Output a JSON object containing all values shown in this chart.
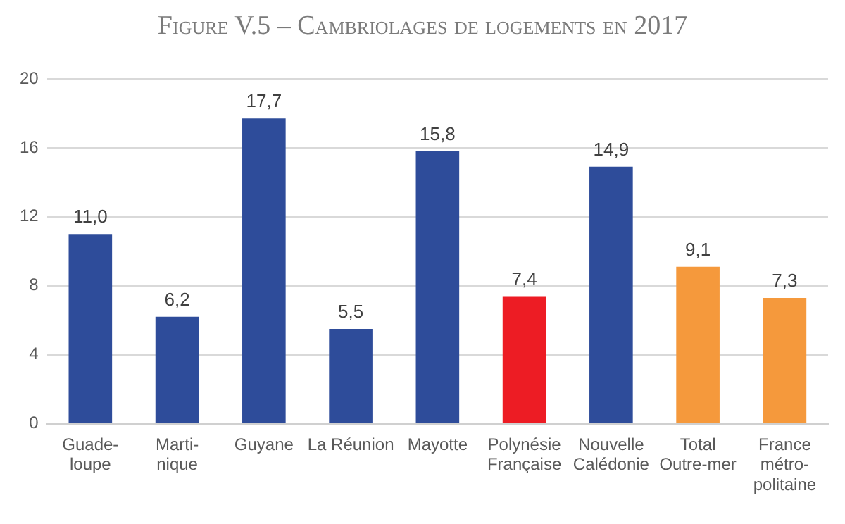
{
  "chart_data": {
    "type": "bar",
    "title": "Figure V.5 – Cambriolages de logements en 2017",
    "categories": [
      "Guade-\nloupe",
      "Marti-\nnique",
      "Guyane",
      "La Réunion",
      "Mayotte",
      "Polynésie\nFrançaise",
      "Nouvelle\nCalédonie",
      "Total\nOutre-mer",
      "France\nmétro-\npolitaine"
    ],
    "values": [
      11.0,
      6.2,
      17.7,
      5.5,
      15.8,
      7.4,
      14.9,
      9.1,
      7.3
    ],
    "colors": [
      "#2e4c9a",
      "#2e4c9a",
      "#2e4c9a",
      "#2e4c9a",
      "#2e4c9a",
      "#ed1c24",
      "#2e4c9a",
      "#f5993c",
      "#f5993c"
    ],
    "value_labels": [
      "11,0",
      "6,2",
      "17,7",
      "5,5",
      "15,8",
      "7,4",
      "14,9",
      "9,1",
      "7,3"
    ],
    "ylim": [
      0,
      20
    ],
    "yticks": [
      0,
      4,
      8,
      12,
      16,
      20
    ],
    "grid": "y",
    "legend": false
  }
}
